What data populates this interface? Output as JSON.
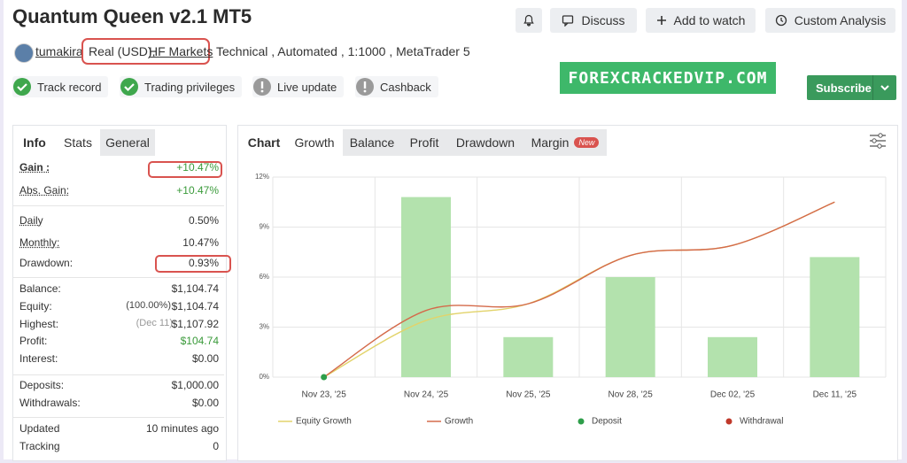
{
  "header": {
    "title": "Quantum Queen v2.1 MT5",
    "buttons": [
      "Discuss",
      "Add to watch",
      "Custom Analysis"
    ],
    "user": "tumakira",
    "account": "Real (USD),",
    "broker": "HF Markets",
    "details": "Technical , Automated , 1:1000 , MetaTrader 5",
    "badges": [
      "Track record",
      "Trading privileges",
      "Live update",
      "Cashback"
    ],
    "watermark": "FOREXCRACKEDVIP.COM",
    "subscribe": "Subscribe"
  },
  "stats": {
    "tabs": [
      "Info",
      "Stats",
      "General"
    ],
    "groups": [
      [
        {
          "label": "Gain :",
          "value": "+10.47%"
        },
        {
          "label": "Abs. Gain:",
          "value": "+10.47%"
        }
      ],
      [
        {
          "label": "Daily",
          "value": "0.50%"
        },
        {
          "label": "Monthly:",
          "value": "10.47%"
        },
        {
          "label": "Drawdown:",
          "value": "0.93%"
        }
      ],
      [
        {
          "label": "Balance:",
          "value": "$1,104.74"
        },
        {
          "label": "Equity:",
          "note": "(100.00%)",
          "value": "$1,104.74"
        },
        {
          "label": "Highest:",
          "note": "(Dec 11)",
          "value": "$1,107.92"
        },
        {
          "label": "Profit:",
          "value": "$104.74"
        },
        {
          "label": "Interest:",
          "value": "$0.00"
        }
      ],
      [
        {
          "label": "Deposits:",
          "value": "$1,000.00"
        },
        {
          "label": "Withdrawals:",
          "value": "$0.00"
        }
      ],
      [
        {
          "label": "Updated",
          "value": "10 minutes ago"
        },
        {
          "label": "Tracking",
          "value": "0"
        }
      ]
    ]
  },
  "chart_tabs": {
    "tabs": [
      "Chart",
      "Growth",
      "Balance",
      "Profit",
      "Drawdown",
      "Margin"
    ],
    "badge": "New"
  },
  "chart_data": {
    "type": "bar",
    "categories": [
      "Nov 23, '25",
      "Nov 24, '25",
      "Nov 25, '25",
      "Nov 28, '25",
      "Dec 02, '25",
      "Dec 11, '25"
    ],
    "values": [
      0,
      10.8,
      2.4,
      6.0,
      2.4,
      7.2
    ],
    "color": "#b3e2ad",
    "series": [
      {
        "name": "Equity Growth",
        "type": "line",
        "color": "#e2d36a",
        "values": [
          0,
          3.4,
          4.4,
          7.3,
          7.9,
          10.5
        ]
      },
      {
        "name": "Growth",
        "type": "line",
        "color": "#d46a4a",
        "values": [
          0,
          4.0,
          4.4,
          7.3,
          7.9,
          10.5
        ]
      },
      {
        "name": "Deposit",
        "type": "scatter",
        "color": "#2e9e4a",
        "values": [
          0,
          null,
          null,
          null,
          null,
          null
        ]
      },
      {
        "name": "Withdrawal",
        "type": "scatter",
        "color": "#c0392b",
        "values": [
          null,
          null,
          null,
          null,
          null,
          null
        ]
      }
    ],
    "ylim": [
      0,
      12
    ],
    "yticks": [
      {
        "value": 0,
        "label": "0%"
      },
      {
        "value": 3,
        "label": "3%"
      },
      {
        "value": 6,
        "label": "6%"
      },
      {
        "value": 9,
        "label": "9%"
      },
      {
        "value": 12,
        "label": "12%"
      }
    ],
    "grid": true
  }
}
